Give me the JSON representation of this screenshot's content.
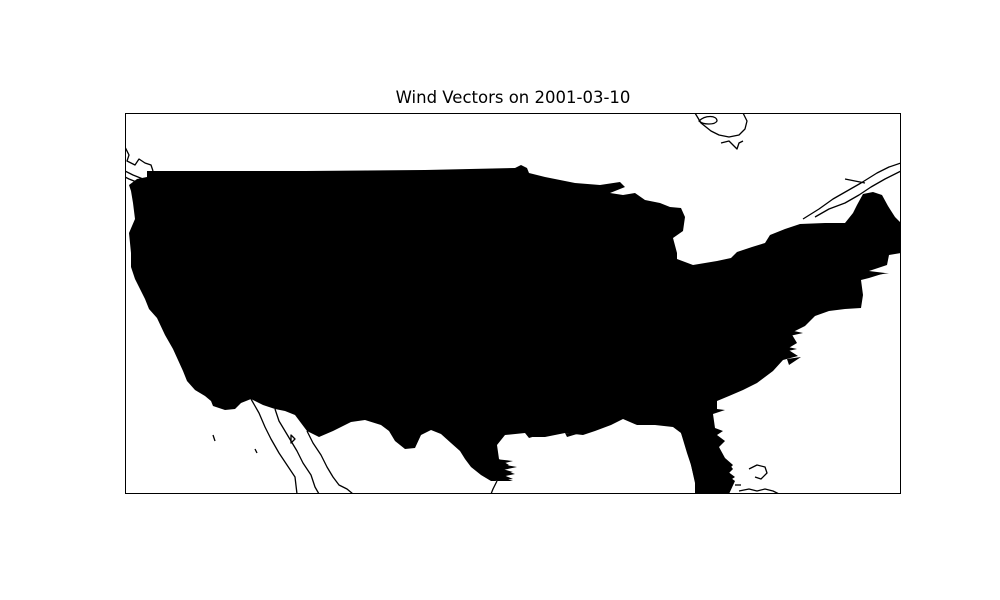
{
  "title": "Wind Vectors on 2001-03-10",
  "colors": {
    "background": "#ffffff",
    "land_fill": "#000000",
    "coastline": "#000000",
    "frame": "#000000"
  },
  "map": {
    "projection": "plate-carree",
    "extent_lon": [
      -125,
      -66
    ],
    "extent_lat": [
      20,
      50
    ],
    "layers": [
      "wind-vector-field",
      "coastlines"
    ]
  }
}
